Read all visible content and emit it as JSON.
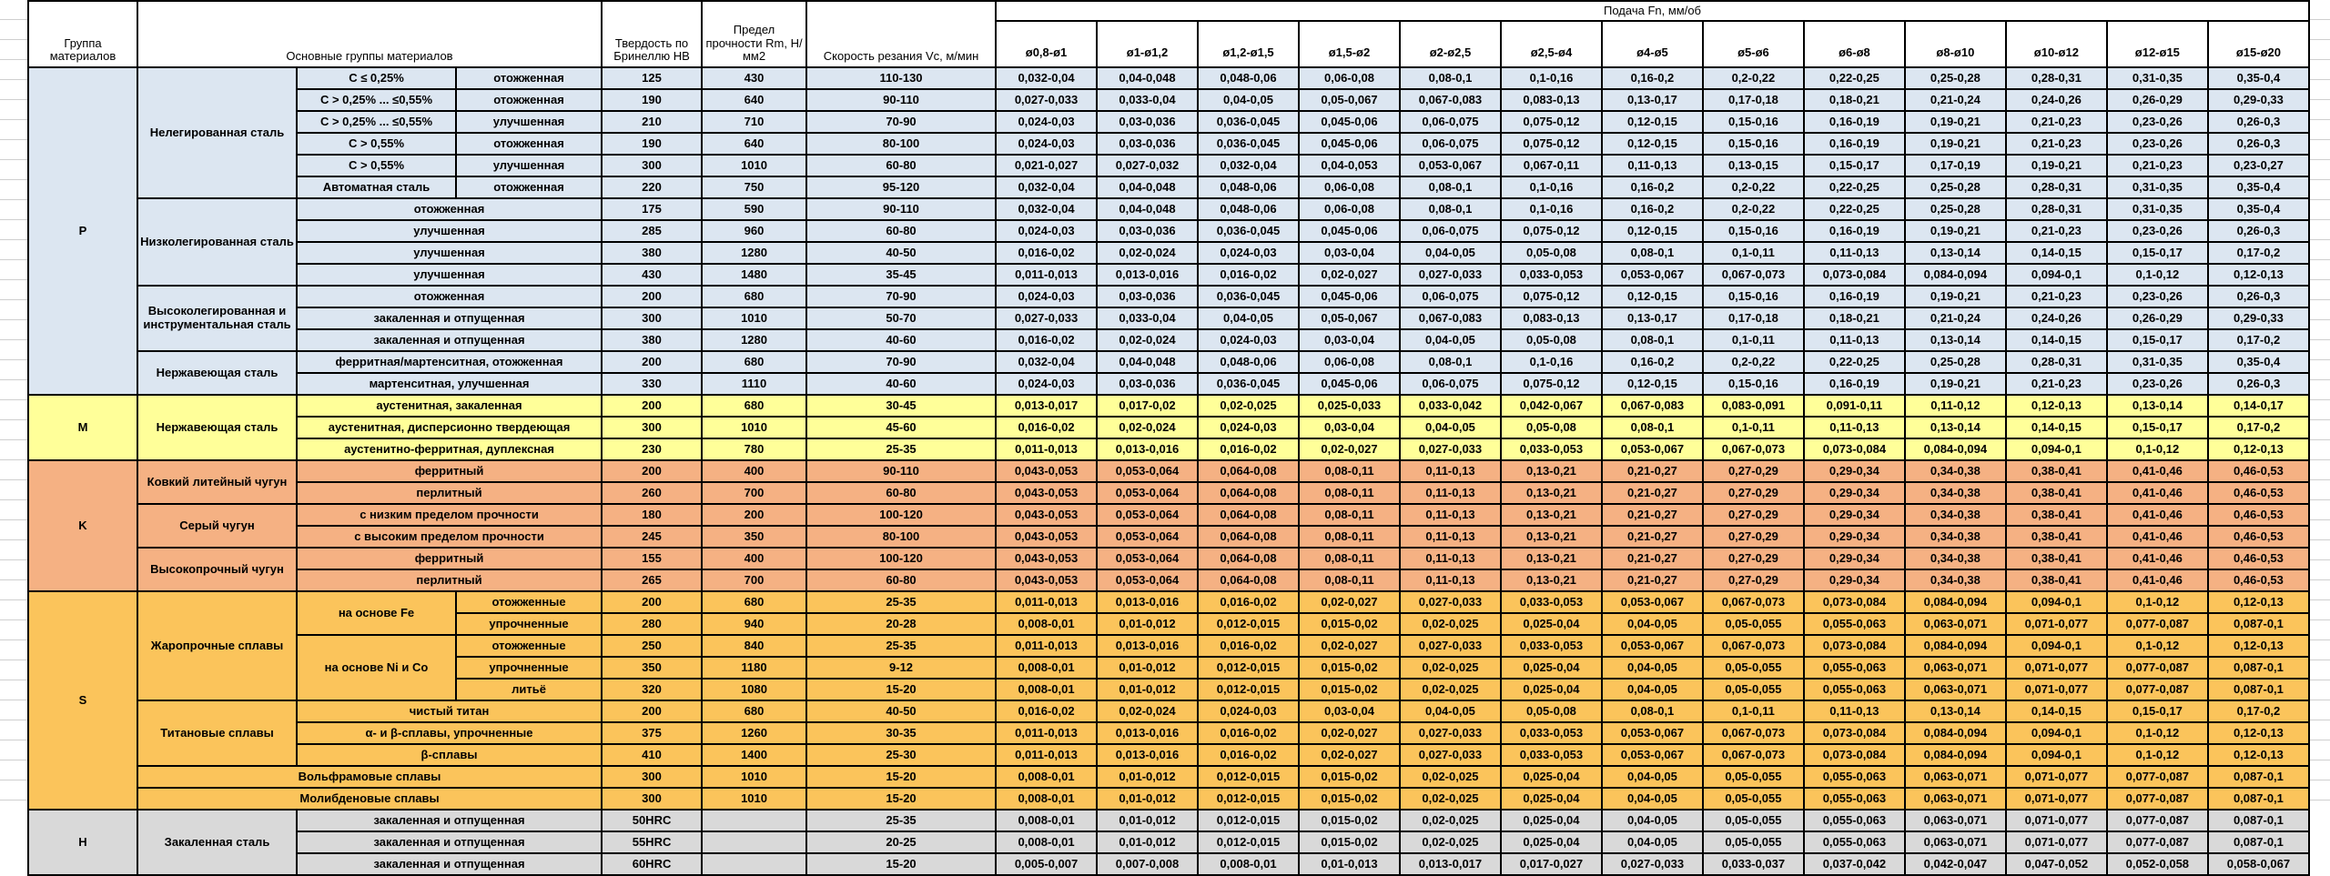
{
  "table": {
    "header": {
      "group": "Группа материалов",
      "main_groups": "Основные группы материалов",
      "hardness": "Твердость по Бринеллю HB",
      "strength": "Предел прочности Rm, Н/мм2",
      "speed": "Скорость резания Vc, м/мин",
      "feed": "Подача Fn, мм/об",
      "feed_cols": [
        "ø0,8-ø1",
        "ø1-ø1,2",
        "ø1,2-ø1,5",
        "ø1,5-ø2",
        "ø2-ø2,5",
        "ø2,5-ø4",
        "ø4-ø5",
        "ø5-ø6",
        "ø6-ø8",
        "ø8-ø10",
        "ø10-ø12",
        "ø12-ø15",
        "ø15-ø20"
      ]
    },
    "feed_presets": {
      "F1": [
        "0,032-0,04",
        "0,04-0,048",
        "0,048-0,06",
        "0,06-0,08",
        "0,08-0,1",
        "0,1-0,16",
        "0,16-0,2",
        "0,2-0,22",
        "0,22-0,25",
        "0,25-0,28",
        "0,28-0,31",
        "0,31-0,35",
        "0,35-0,4"
      ],
      "F2": [
        "0,027-0,033",
        "0,033-0,04",
        "0,04-0,05",
        "0,05-0,067",
        "0,067-0,083",
        "0,083-0,13",
        "0,13-0,17",
        "0,17-0,18",
        "0,18-0,21",
        "0,21-0,24",
        "0,24-0,26",
        "0,26-0,29",
        "0,29-0,33"
      ],
      "F3": [
        "0,024-0,03",
        "0,03-0,036",
        "0,036-0,045",
        "0,045-0,06",
        "0,06-0,075",
        "0,075-0,12",
        "0,12-0,15",
        "0,15-0,16",
        "0,16-0,19",
        "0,19-0,21",
        "0,21-0,23",
        "0,23-0,26",
        "0,26-0,3"
      ],
      "F4": [
        "0,021-0,027",
        "0,027-0,032",
        "0,032-0,04",
        "0,04-0,053",
        "0,053-0,067",
        "0,067-0,11",
        "0,11-0,13",
        "0,13-0,15",
        "0,15-0,17",
        "0,17-0,19",
        "0,19-0,21",
        "0,21-0,23",
        "0,23-0,27"
      ],
      "F5": [
        "0,016-0,02",
        "0,02-0,024",
        "0,024-0,03",
        "0,03-0,04",
        "0,04-0,05",
        "0,05-0,08",
        "0,08-0,1",
        "0,1-0,11",
        "0,11-0,13",
        "0,13-0,14",
        "0,14-0,15",
        "0,15-0,17",
        "0,17-0,2"
      ],
      "F6": [
        "0,011-0,013",
        "0,013-0,016",
        "0,016-0,02",
        "0,02-0,027",
        "0,027-0,033",
        "0,033-0,053",
        "0,053-0,067",
        "0,067-0,073",
        "0,073-0,084",
        "0,084-0,094",
        "0,094-0,1",
        "0,1-0,12",
        "0,12-0,13"
      ],
      "F7": [
        "0,013-0,017",
        "0,017-0,02",
        "0,02-0,025",
        "0,025-0,033",
        "0,033-0,042",
        "0,042-0,067",
        "0,067-0,083",
        "0,083-0,091",
        "0,091-0,11",
        "0,11-0,12",
        "0,12-0,13",
        "0,13-0,14",
        "0,14-0,17"
      ],
      "FK": [
        "0,043-0,053",
        "0,053-0,064",
        "0,064-0,08",
        "0,08-0,11",
        "0,11-0,13",
        "0,13-0,21",
        "0,21-0,27",
        "0,27-0,29",
        "0,29-0,34",
        "0,34-0,38",
        "0,38-0,41",
        "0,41-0,46",
        "0,46-0,53"
      ],
      "F8": [
        "0,008-0,01",
        "0,01-0,012",
        "0,012-0,015",
        "0,015-0,02",
        "0,02-0,025",
        "0,025-0,04",
        "0,04-0,05",
        "0,05-0,055",
        "0,055-0,063",
        "0,063-0,071",
        "0,071-0,077",
        "0,077-0,087",
        "0,087-0,1"
      ],
      "F9": [
        "0,005-0,007",
        "0,007-0,008",
        "0,008-0,01",
        "0,01-0,013",
        "0,013-0,017",
        "0,017-0,027",
        "0,027-0,033",
        "0,033-0,037",
        "0,037-0,042",
        "0,042-0,047",
        "0,047-0,052",
        "0,052-0,058",
        "0,058-0,067"
      ]
    },
    "rows": [
      {
        "g": "p",
        "feeds": "F1",
        "cells": [
          {
            "t": "P",
            "rs": 15
          },
          {
            "t": "Нелегированная сталь",
            "rs": 6
          },
          "C ≤ 0,25%",
          "отожженная",
          "125",
          "430",
          "110-130"
        ]
      },
      {
        "g": "p",
        "feeds": "F2",
        "cells": [
          "C > 0,25% ... ≤0,55%",
          "отожженная",
          "190",
          "640",
          "90-110"
        ]
      },
      {
        "g": "p",
        "feeds": "F3",
        "cells": [
          "C > 0,25% ... ≤0,55%",
          "улучшенная",
          "210",
          "710",
          "70-90"
        ]
      },
      {
        "g": "p",
        "feeds": "F3",
        "cells": [
          "C > 0,55%",
          "отожженная",
          "190",
          "640",
          "80-100"
        ]
      },
      {
        "g": "p",
        "feeds": "F4",
        "cells": [
          "C > 0,55%",
          "улучшенная",
          "300",
          "1010",
          "60-80"
        ]
      },
      {
        "g": "p",
        "feeds": "F1",
        "cells": [
          "Автоматная сталь",
          "отожженная",
          "220",
          "750",
          "95-120"
        ]
      },
      {
        "g": "p",
        "feeds": "F1",
        "cells": [
          {
            "t": "Низколегированная сталь",
            "rs": 4
          },
          {
            "t": "отожженная",
            "cs": 2
          },
          "175",
          "590",
          "90-110"
        ]
      },
      {
        "g": "p",
        "feeds": "F3",
        "cells": [
          {
            "t": "улучшенная",
            "cs": 2
          },
          "285",
          "960",
          "60-80"
        ]
      },
      {
        "g": "p",
        "feeds": "F5",
        "cells": [
          {
            "t": "улучшенная",
            "cs": 2
          },
          "380",
          "1280",
          "40-50"
        ]
      },
      {
        "g": "p",
        "feeds": "F6",
        "cells": [
          {
            "t": "улучшенная",
            "cs": 2
          },
          "430",
          "1480",
          "35-45"
        ]
      },
      {
        "g": "p",
        "feeds": "F3",
        "cells": [
          {
            "t": "Высоколегированная и инструментальная сталь",
            "rs": 3
          },
          {
            "t": "отожженная",
            "cs": 2
          },
          "200",
          "680",
          "70-90"
        ]
      },
      {
        "g": "p",
        "feeds": "F2",
        "cells": [
          {
            "t": "закаленная и отпущенная",
            "cs": 2
          },
          "300",
          "1010",
          "50-70"
        ]
      },
      {
        "g": "p",
        "feeds": "F5",
        "cells": [
          {
            "t": "закаленная и отпущенная",
            "cs": 2
          },
          "380",
          "1280",
          "40-60"
        ]
      },
      {
        "g": "p",
        "feeds": "F1",
        "cells": [
          {
            "t": "Нержавеющая сталь",
            "rs": 2
          },
          {
            "t": "ферритная/мартенситная, отожженная",
            "cs": 2
          },
          "200",
          "680",
          "70-90"
        ]
      },
      {
        "g": "p",
        "feeds": "F3",
        "cells": [
          {
            "t": "мартенситная, улучшенная",
            "cs": 2
          },
          "330",
          "1110",
          "40-60"
        ]
      },
      {
        "g": "m",
        "feeds": "F7",
        "cells": [
          {
            "t": "M",
            "rs": 3
          },
          {
            "t": "Нержавеющая сталь",
            "rs": 3
          },
          {
            "t": "аустенитная, закаленная",
            "cs": 2
          },
          "200",
          "680",
          "30-45"
        ]
      },
      {
        "g": "m",
        "feeds": "F5",
        "cells": [
          {
            "t": "аустенитная, дисперсионно твердеющая",
            "cs": 2
          },
          "300",
          "1010",
          "45-60"
        ]
      },
      {
        "g": "m",
        "feeds": "F6",
        "cells": [
          {
            "t": "аустенитно-ферритная, дуплексная",
            "cs": 2
          },
          "230",
          "780",
          "25-35"
        ]
      },
      {
        "g": "k",
        "feeds": "FK",
        "cells": [
          {
            "t": "K",
            "rs": 6
          },
          {
            "t": "Ковкий литейный чугун",
            "rs": 2
          },
          {
            "t": "ферритный",
            "cs": 2
          },
          "200",
          "400",
          "90-110"
        ]
      },
      {
        "g": "k",
        "feeds": "FK",
        "cells": [
          {
            "t": "перлитный",
            "cs": 2
          },
          "260",
          "700",
          "60-80"
        ]
      },
      {
        "g": "k",
        "feeds": "FK",
        "cells": [
          {
            "t": "Серый чугун",
            "rs": 2
          },
          {
            "t": "с низким пределом прочности",
            "cs": 2
          },
          "180",
          "200",
          "100-120"
        ]
      },
      {
        "g": "k",
        "feeds": "FK",
        "cells": [
          {
            "t": "с высоким пределом прочности",
            "cs": 2
          },
          "245",
          "350",
          "80-100"
        ]
      },
      {
        "g": "k",
        "feeds": "FK",
        "cells": [
          {
            "t": "Высокопрочный чугун",
            "rs": 2
          },
          {
            "t": "ферритный",
            "cs": 2
          },
          "155",
          "400",
          "100-120"
        ]
      },
      {
        "g": "k",
        "feeds": "FK",
        "cells": [
          {
            "t": "перлитный",
            "cs": 2
          },
          "265",
          "700",
          "60-80"
        ]
      },
      {
        "g": "s",
        "feeds": "F6",
        "cells": [
          {
            "t": "S",
            "rs": 10
          },
          {
            "t": "Жаропрочные сплавы",
            "rs": 5
          },
          {
            "t": "на основе Fe",
            "rs": 2
          },
          "отожженные",
          "200",
          "680",
          "25-35"
        ]
      },
      {
        "g": "s",
        "feeds": "F8",
        "cells": [
          "упрочненные",
          "280",
          "940",
          "20-28"
        ]
      },
      {
        "g": "s",
        "feeds": "F6",
        "cells": [
          {
            "t": "на основе Ni и Co",
            "rs": 3
          },
          "отожженные",
          "250",
          "840",
          "25-35"
        ]
      },
      {
        "g": "s",
        "feeds": "F8",
        "cells": [
          "упрочненные",
          "350",
          "1180",
          "9-12"
        ]
      },
      {
        "g": "s",
        "feeds": "F8",
        "cells": [
          "литьё",
          "320",
          "1080",
          "15-20"
        ]
      },
      {
        "g": "s",
        "feeds": "F5",
        "cells": [
          {
            "t": "Титановые сплавы",
            "rs": 3
          },
          {
            "t": "чистый титан",
            "cs": 2
          },
          "200",
          "680",
          "40-50"
        ]
      },
      {
        "g": "s",
        "feeds": "F6",
        "cells": [
          {
            "t": "α- и β-сплавы, упрочненные",
            "cs": 2
          },
          "375",
          "1260",
          "30-35"
        ]
      },
      {
        "g": "s",
        "feeds": "F6",
        "cells": [
          {
            "t": "β-сплавы",
            "cs": 2
          },
          "410",
          "1400",
          "25-30"
        ]
      },
      {
        "g": "s",
        "feeds": "F8",
        "cells": [
          {
            "t": "Вольфрамовые сплавы",
            "cs": 3
          },
          "300",
          "1010",
          "15-20"
        ]
      },
      {
        "g": "s",
        "feeds": "F8",
        "cells": [
          {
            "t": "Молибденовые сплавы",
            "cs": 3
          },
          "300",
          "1010",
          "15-20"
        ]
      },
      {
        "g": "h",
        "feeds": "F8",
        "cells": [
          {
            "t": "H",
            "rs": 3
          },
          {
            "t": "Закаленная сталь",
            "rs": 3
          },
          {
            "t": "закаленная и отпущенная",
            "cs": 2
          },
          "50HRC",
          "",
          "25-35"
        ]
      },
      {
        "g": "h",
        "feeds": "F8",
        "cells": [
          {
            "t": "закаленная и отпущенная",
            "cs": 2
          },
          "55HRC",
          "",
          "20-25"
        ]
      },
      {
        "g": "h",
        "feeds": "F9",
        "cells": [
          {
            "t": "закаленная и отпущенная",
            "cs": 2
          },
          "60HRC",
          "",
          "15-20"
        ]
      }
    ]
  }
}
